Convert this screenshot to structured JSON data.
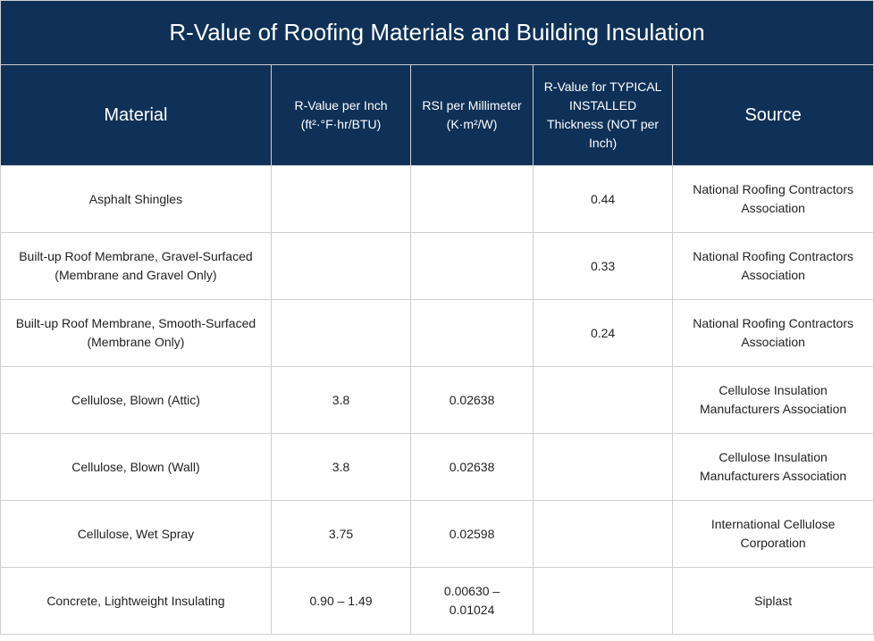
{
  "table": {
    "title": "R-Value of Roofing Materials and Building Insulation",
    "header_bg": "#0f3158",
    "header_fg": "#ffffff",
    "cell_fg": "#222222",
    "border_color": "#cfcfcf",
    "title_fontsize": 26,
    "header_big_fontsize": 20,
    "header_small_fontsize": 14,
    "cell_fontsize": 14,
    "columns": [
      {
        "label": "Material",
        "size": "big",
        "width": "31%"
      },
      {
        "label": "R-Value per Inch (ft²·°F·hr/BTU)",
        "size": "small",
        "width": "16%"
      },
      {
        "label": "RSI per Millimeter (K·m²/W)",
        "size": "small",
        "width": "14%"
      },
      {
        "label": "R-Value for TYPICAL INSTALLED Thickness (NOT per Inch)",
        "size": "small",
        "width": "16%"
      },
      {
        "label": "Source",
        "size": "big",
        "width": "23%"
      }
    ],
    "rows": [
      {
        "material": "Asphalt Shingles",
        "r_per_inch": "",
        "rsi_per_mm": "",
        "r_typical": "0.44",
        "source": "National Roofing Contractors Association"
      },
      {
        "material": "Built-up Roof Membrane, Gravel-Surfaced (Membrane and Gravel Only)",
        "r_per_inch": "",
        "rsi_per_mm": "",
        "r_typical": "0.33",
        "source": "National Roofing Contractors Association"
      },
      {
        "material": "Built-up Roof Membrane, Smooth-Surfaced (Membrane Only)",
        "r_per_inch": "",
        "rsi_per_mm": "",
        "r_typical": "0.24",
        "source": "National Roofing Contractors Association"
      },
      {
        "material": "Cellulose, Blown (Attic)",
        "r_per_inch": "3.8",
        "rsi_per_mm": "0.02638",
        "r_typical": "",
        "source": "Cellulose Insulation Manufacturers Association"
      },
      {
        "material": "Cellulose, Blown (Wall)",
        "r_per_inch": "3.8",
        "rsi_per_mm": "0.02638",
        "r_typical": "",
        "source": "Cellulose Insulation Manufacturers Association"
      },
      {
        "material": "Cellulose, Wet Spray",
        "r_per_inch": "3.75",
        "rsi_per_mm": "0.02598",
        "r_typical": "",
        "source": "International Cellulose Corporation"
      },
      {
        "material": "Concrete, Lightweight Insulating",
        "r_per_inch": "0.90 – 1.49",
        "rsi_per_mm": "0.00630 – 0.01024",
        "r_typical": "",
        "source": "Siplast"
      }
    ]
  }
}
